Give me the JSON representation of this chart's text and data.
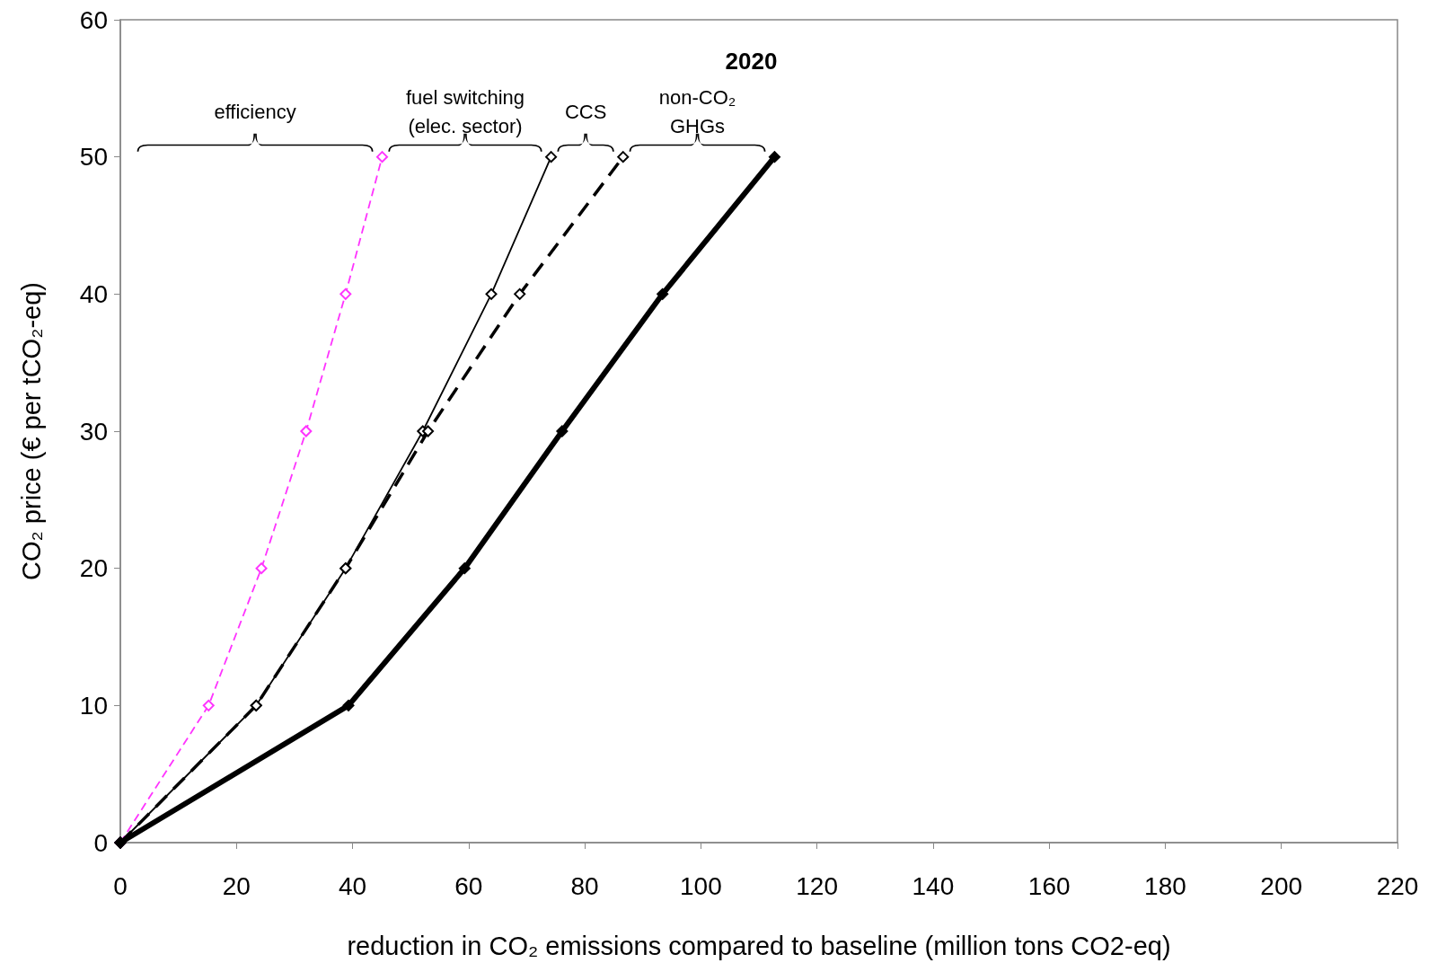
{
  "chart_data": {
    "type": "line",
    "xlabel": "reduction in CO₂ emissions compared to baseline (million tons CO2-eq)",
    "ylabel": "CO₂ price (€ per tCO₂-eq)",
    "xlim": [
      0,
      220
    ],
    "xticks": [
      0,
      20,
      40,
      60,
      80,
      100,
      120,
      140,
      160,
      180,
      200,
      220
    ],
    "ylim": [
      0,
      60
    ],
    "yticks": [
      0,
      10,
      20,
      30,
      40,
      50,
      60
    ],
    "grid": false,
    "marker": "diamond",
    "series": [
      {
        "color": "#ff33ff",
        "line_style": "dashed",
        "x": [
          0,
          15.2,
          24.3,
          32.0,
          38.8,
          45.1
        ],
        "values": [
          0,
          10,
          20,
          30,
          40,
          50
        ]
      },
      {
        "color": "#000000",
        "line_style": "solid",
        "x": [
          0,
          23.4,
          38.8,
          52.1,
          63.9,
          74.2
        ],
        "values": [
          0,
          10,
          20,
          30,
          40,
          50
        ]
      },
      {
        "color": "#000000",
        "line_style": "dashed",
        "x": [
          0,
          23.4,
          38.8,
          53.0,
          68.8,
          86.6
        ],
        "values": [
          0,
          10,
          20,
          30,
          40,
          50
        ]
      },
      {
        "color": "#000000",
        "line_style": "solid",
        "x": [
          0,
          39.3,
          59.3,
          76.1,
          93.4,
          112.7
        ],
        "values": [
          0,
          10,
          20,
          30,
          40,
          50
        ]
      }
    ],
    "annotations": [
      "efficiency",
      "fuel switching\n(elec. sector)",
      "CCS",
      "non-CO₂\nGHGs",
      "2020"
    ]
  }
}
